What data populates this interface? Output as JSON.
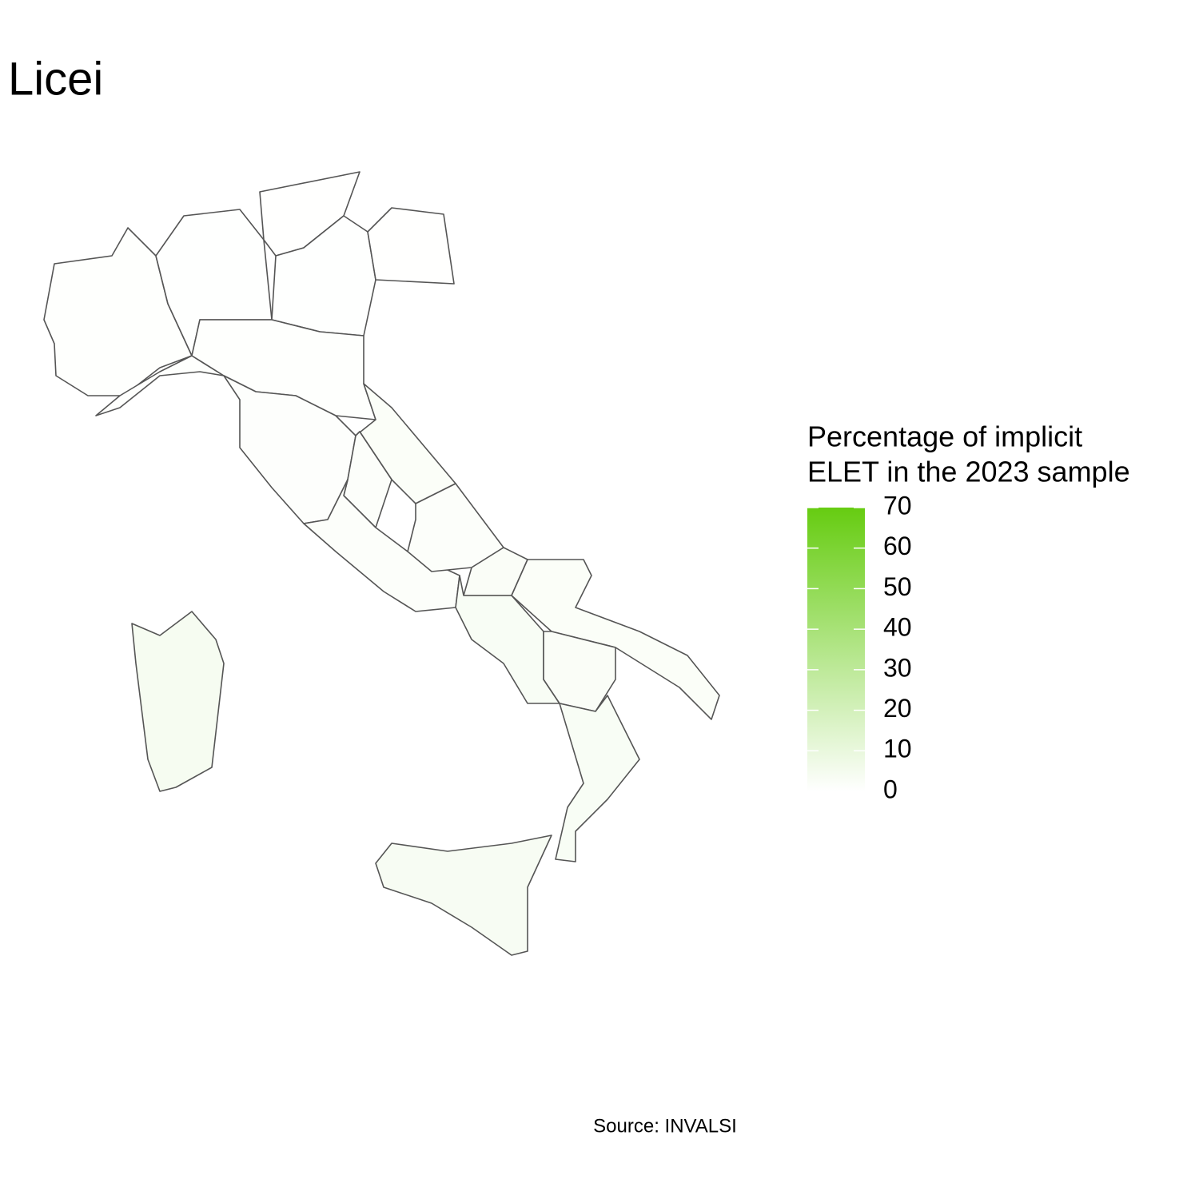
{
  "title": "Licei",
  "legend": {
    "title": [
      "Percentage of implicit",
      "ELET in the 2023 sample"
    ],
    "limits": [
      0,
      70
    ],
    "ticks": [
      0,
      10,
      20,
      30,
      40,
      50,
      60,
      70
    ],
    "low_color": "#ffffff",
    "high_color": "#66cc11"
  },
  "regions": {
    "values": [
      0.5,
      0.3,
      0.2,
      0.3,
      0.2,
      0.6,
      0.5,
      0.8,
      2,
      1.5,
      1.5,
      1.5,
      2.5,
      3,
      2,
      2.5,
      3,
      3.5,
      4
    ]
  },
  "caption": "Source: INVALSI"
}
